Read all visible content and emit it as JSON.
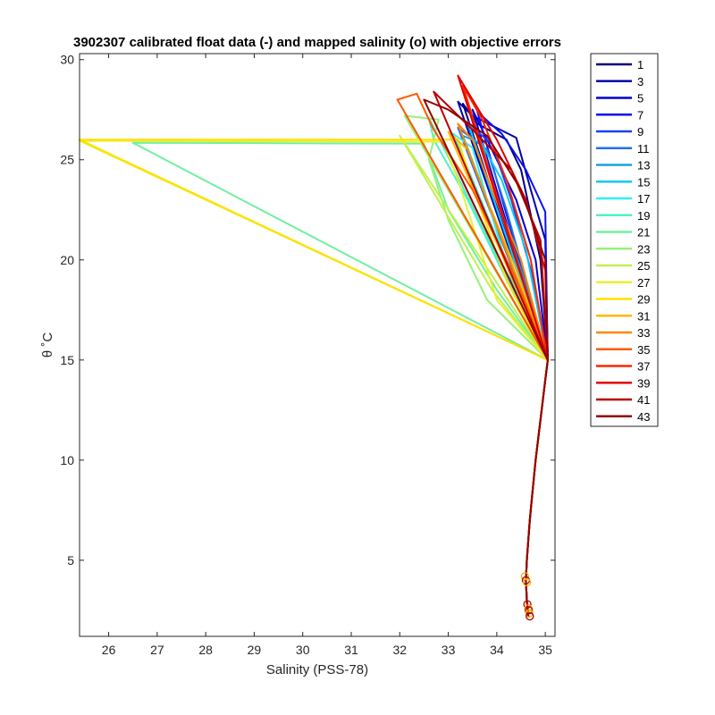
{
  "chart_data": {
    "type": "line",
    "title": "3902307 calibrated float data (-) and mapped salinity (o) with objective errors",
    "xlabel": "Salinity (PSS-78)",
    "ylabel": "θ ˚C",
    "xlim": [
      25.4,
      35.2
    ],
    "ylim": [
      1.2,
      30.3
    ],
    "xticks": [
      26,
      27,
      28,
      29,
      30,
      31,
      32,
      33,
      34,
      35
    ],
    "yticks": [
      5,
      10,
      15,
      20,
      25,
      30
    ],
    "grid": false,
    "legend_position": "outside-right",
    "legend": [
      "1",
      "3",
      "5",
      "7",
      "9",
      "11",
      "13",
      "15",
      "17",
      "19",
      "21",
      "23",
      "25",
      "27",
      "29",
      "31",
      "33",
      "35",
      "37",
      "39",
      "41",
      "43"
    ],
    "legend_colors": [
      "#000080",
      "#0000AA",
      "#0000D5",
      "#0A10F0",
      "#1A40F5",
      "#1F70E8",
      "#18A0E0",
      "#10C8F0",
      "#30F0F0",
      "#50F0C8",
      "#70F0A0",
      "#98F078",
      "#C0F050",
      "#E8F030",
      "#FFE000",
      "#FFB800",
      "#FF8800",
      "#FF5800",
      "#F82800",
      "#E00000",
      "#B80000",
      "#900000"
    ],
    "deep_profile": [
      [
        35.05,
        15.0
      ],
      [
        35.0,
        14.0
      ],
      [
        34.95,
        13.0
      ],
      [
        34.9,
        12.0
      ],
      [
        34.85,
        11.0
      ],
      [
        34.8,
        10.0
      ],
      [
        34.76,
        9.0
      ],
      [
        34.72,
        8.0
      ],
      [
        34.68,
        7.0
      ],
      [
        34.65,
        6.0
      ],
      [
        34.62,
        5.0
      ],
      [
        34.6,
        4.0
      ],
      [
        34.62,
        3.0
      ],
      [
        34.65,
        2.2
      ]
    ],
    "mapped_points": [
      [
        34.58,
        4.2
      ],
      [
        34.6,
        4.0
      ],
      [
        34.62,
        3.9
      ],
      [
        34.63,
        2.8
      ],
      [
        34.65,
        2.6
      ],
      [
        34.66,
        2.5
      ],
      [
        34.67,
        2.35
      ],
      [
        34.68,
        2.2
      ]
    ],
    "series": [
      {
        "name": "1",
        "points": [
          [
            35.05,
            15.0
          ],
          [
            34.9,
            20.0
          ],
          [
            34.5,
            24.5
          ],
          [
            34.2,
            26.0
          ],
          [
            33.6,
            26.8
          ],
          [
            33.3,
            27.8
          ]
        ]
      },
      {
        "name": "3",
        "points": [
          [
            35.05,
            15.0
          ],
          [
            35.0,
            21.0
          ],
          [
            34.7,
            23.5
          ],
          [
            34.4,
            26.1
          ],
          [
            33.5,
            27.2
          ],
          [
            33.2,
            27.9
          ]
        ]
      },
      {
        "name": "5",
        "points": [
          [
            35.05,
            15.0
          ],
          [
            34.8,
            20.0
          ],
          [
            34.4,
            23.0
          ],
          [
            33.8,
            26.0
          ],
          [
            33.5,
            27.5
          ]
        ]
      },
      {
        "name": "7",
        "points": [
          [
            35.05,
            15.0
          ],
          [
            35.0,
            22.4
          ],
          [
            34.6,
            24.5
          ],
          [
            34.1,
            26.3
          ],
          [
            33.6,
            27.4
          ]
        ]
      },
      {
        "name": "9",
        "points": [
          [
            35.05,
            15.0
          ],
          [
            34.7,
            19.5
          ],
          [
            34.3,
            23.0
          ],
          [
            33.9,
            25.8
          ],
          [
            33.4,
            26.8
          ]
        ]
      },
      {
        "name": "11",
        "points": [
          [
            35.05,
            15.0
          ],
          [
            34.6,
            19.0
          ],
          [
            34.2,
            22.5
          ],
          [
            33.8,
            25.5
          ],
          [
            33.2,
            26.6
          ]
        ]
      },
      {
        "name": "13",
        "points": [
          [
            35.05,
            15.0
          ],
          [
            34.5,
            19.5
          ],
          [
            34.0,
            23.0
          ],
          [
            33.7,
            25.8
          ],
          [
            33.3,
            26.2
          ]
        ]
      },
      {
        "name": "15",
        "points": [
          [
            35.05,
            15.0
          ],
          [
            34.6,
            20.5
          ],
          [
            34.1,
            24.0
          ],
          [
            33.6,
            26.2
          ],
          [
            33.4,
            26.9
          ]
        ]
      },
      {
        "name": "17",
        "points": [
          [
            35.05,
            15.0
          ],
          [
            34.3,
            19.0
          ],
          [
            33.8,
            23.0
          ],
          [
            33.5,
            25.6
          ],
          [
            33.1,
            26.3
          ]
        ]
      },
      {
        "name": "19",
        "points": [
          [
            35.05,
            15.0
          ],
          [
            34.2,
            19.0
          ],
          [
            33.4,
            23.0
          ],
          [
            32.7,
            26.0
          ],
          [
            32.6,
            27.1
          ]
        ]
      },
      {
        "name": "21",
        "points": [
          [
            35.05,
            15.0
          ],
          [
            34.0,
            18.5
          ],
          [
            33.0,
            22.5
          ],
          [
            32.5,
            25.8
          ],
          [
            26.5,
            25.85
          ]
        ]
      },
      {
        "name": "23",
        "points": [
          [
            35.05,
            15.0
          ],
          [
            33.8,
            18.0
          ],
          [
            33.0,
            22.0
          ],
          [
            32.6,
            25.0
          ],
          [
            32.8,
            27.0
          ],
          [
            32.1,
            27.2
          ]
        ]
      },
      {
        "name": "25",
        "points": [
          [
            35.05,
            15.0
          ],
          [
            33.9,
            18.5
          ],
          [
            32.0,
            26.2
          ]
        ]
      },
      {
        "name": "27",
        "points": [
          [
            35.05,
            15.0
          ],
          [
            34.0,
            18.0
          ],
          [
            33.2,
            24.0
          ],
          [
            32.9,
            25.9
          ],
          [
            25.4,
            25.95
          ]
        ]
      },
      {
        "name": "29",
        "points": [
          [
            35.05,
            15.0
          ],
          [
            34.2,
            19.0
          ],
          [
            33.6,
            23.0
          ],
          [
            33.2,
            26.0
          ],
          [
            25.4,
            26.0
          ]
        ]
      },
      {
        "name": "31",
        "points": [
          [
            35.05,
            15.0
          ],
          [
            34.4,
            19.5
          ],
          [
            33.8,
            23.0
          ],
          [
            33.4,
            25.5
          ],
          [
            33.0,
            26.4
          ]
        ]
      },
      {
        "name": "33",
        "points": [
          [
            35.05,
            15.0
          ],
          [
            34.5,
            20.0
          ],
          [
            33.9,
            23.5
          ],
          [
            33.5,
            26.0
          ],
          [
            33.2,
            26.8
          ]
        ]
      },
      {
        "name": "35",
        "points": [
          [
            35.05,
            15.0
          ],
          [
            34.4,
            19.0
          ],
          [
            33.5,
            23.5
          ],
          [
            32.7,
            26.5
          ],
          [
            32.35,
            28.3
          ],
          [
            31.95,
            28.0
          ]
        ]
      },
      {
        "name": "37",
        "points": [
          [
            35.05,
            15.0
          ],
          [
            34.7,
            20.0
          ],
          [
            34.2,
            24.0
          ],
          [
            33.7,
            27.0
          ],
          [
            33.3,
            28.7
          ]
        ]
      },
      {
        "name": "39",
        "points": [
          [
            35.05,
            15.0
          ],
          [
            35.0,
            19.5
          ],
          [
            34.6,
            23.0
          ],
          [
            34.0,
            26.0
          ],
          [
            33.2,
            29.2
          ]
        ]
      },
      {
        "name": "41",
        "points": [
          [
            35.05,
            15.0
          ],
          [
            34.9,
            21.0
          ],
          [
            34.3,
            24.5
          ],
          [
            33.5,
            26.5
          ],
          [
            32.7,
            28.4
          ]
        ]
      },
      {
        "name": "43",
        "points": [
          [
            35.05,
            15.0
          ],
          [
            35.0,
            20.0
          ],
          [
            34.5,
            23.5
          ],
          [
            33.8,
            26.2
          ],
          [
            33.0,
            27.5
          ],
          [
            32.5,
            28.0
          ]
        ]
      }
    ]
  }
}
